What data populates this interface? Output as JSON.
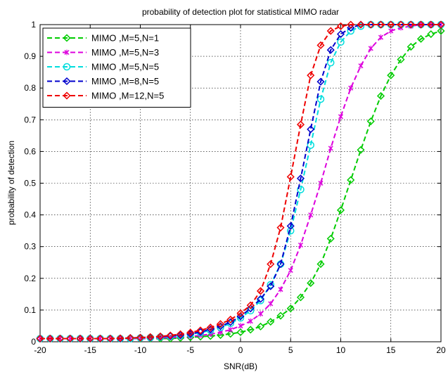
{
  "chart_data": {
    "type": "line",
    "title": "probability of detection plot for statistical MIMO radar",
    "xlabel": "SNR(dB)",
    "ylabel": "probability of detection",
    "xlim": [
      -20,
      20
    ],
    "ylim": [
      0,
      1
    ],
    "x_ticks": [
      "-20",
      "-15",
      "-10",
      "-5",
      "0",
      "5",
      "10",
      "15",
      "20"
    ],
    "y_ticks": [
      "0",
      "0.1",
      "0.2",
      "0.3",
      "0.4",
      "0.5",
      "0.6",
      "0.7",
      "0.8",
      "0.9",
      "1"
    ],
    "grid": true,
    "legend_position": "top-left",
    "x": [
      -20,
      -19,
      -18,
      -17,
      -16,
      -15,
      -14,
      -13,
      -12,
      -11,
      -10,
      -9,
      -8,
      -7,
      -6,
      -5,
      -4,
      -3,
      -2,
      -1,
      0,
      1,
      2,
      3,
      4,
      5,
      6,
      7,
      8,
      9,
      10,
      11,
      12,
      13,
      14,
      15,
      16,
      17,
      18,
      19,
      20
    ],
    "series": [
      {
        "name": "MIMO ,M=5,N=1",
        "color": "#00cc00",
        "marker": "diamond",
        "values": [
          0.01,
          0.01,
          0.01,
          0.01,
          0.01,
          0.01,
          0.01,
          0.01,
          0.01,
          0.01,
          0.01,
          0.01,
          0.01,
          0.01,
          0.012,
          0.014,
          0.016,
          0.018,
          0.021,
          0.025,
          0.03,
          0.038,
          0.048,
          0.063,
          0.082,
          0.105,
          0.14,
          0.185,
          0.245,
          0.325,
          0.415,
          0.51,
          0.605,
          0.695,
          0.775,
          0.84,
          0.89,
          0.93,
          0.955,
          0.97,
          0.98
        ]
      },
      {
        "name": "MIMO ,M=5,N=3",
        "color": "#dd00dd",
        "marker": "x",
        "values": [
          0.01,
          0.01,
          0.01,
          0.01,
          0.01,
          0.01,
          0.01,
          0.01,
          0.01,
          0.01,
          0.01,
          0.01,
          0.012,
          0.013,
          0.015,
          0.017,
          0.02,
          0.024,
          0.03,
          0.038,
          0.05,
          0.065,
          0.088,
          0.12,
          0.165,
          0.225,
          0.305,
          0.4,
          0.5,
          0.61,
          0.71,
          0.8,
          0.87,
          0.925,
          0.96,
          0.98,
          0.99,
          0.995,
          1.0,
          1.0,
          1.0
        ]
      },
      {
        "name": "MIMO ,M=5,N=5",
        "color": "#00dddd",
        "marker": "circle",
        "values": [
          0.01,
          0.01,
          0.01,
          0.01,
          0.01,
          0.01,
          0.01,
          0.01,
          0.01,
          0.01,
          0.012,
          0.013,
          0.015,
          0.017,
          0.02,
          0.024,
          0.029,
          0.036,
          0.045,
          0.058,
          0.075,
          0.098,
          0.13,
          0.18,
          0.245,
          0.35,
          0.48,
          0.62,
          0.765,
          0.88,
          0.945,
          0.98,
          0.995,
          1.0,
          1.0,
          1.0,
          1.0,
          1.0,
          1.0,
          1.0,
          1.0
        ]
      },
      {
        "name": "MIMO ,M=8,N=5",
        "color": "#0000cc",
        "marker": "diamond",
        "values": [
          0.01,
          0.01,
          0.01,
          0.01,
          0.01,
          0.01,
          0.01,
          0.01,
          0.01,
          0.012,
          0.013,
          0.014,
          0.016,
          0.018,
          0.021,
          0.025,
          0.031,
          0.039,
          0.049,
          0.062,
          0.08,
          0.105,
          0.135,
          0.175,
          0.245,
          0.365,
          0.515,
          0.67,
          0.82,
          0.92,
          0.97,
          0.99,
          1.0,
          1.0,
          1.0,
          1.0,
          1.0,
          1.0,
          1.0,
          1.0,
          1.0
        ]
      },
      {
        "name": "MIMO ,M=12,N=5",
        "color": "#ee0000",
        "marker": "diamond",
        "values": [
          0.01,
          0.01,
          0.01,
          0.01,
          0.01,
          0.01,
          0.01,
          0.01,
          0.011,
          0.012,
          0.013,
          0.015,
          0.017,
          0.02,
          0.024,
          0.029,
          0.036,
          0.045,
          0.056,
          0.07,
          0.09,
          0.115,
          0.16,
          0.245,
          0.36,
          0.52,
          0.685,
          0.84,
          0.935,
          0.98,
          0.995,
          1.0,
          1.0,
          1.0,
          1.0,
          1.0,
          1.0,
          1.0,
          1.0,
          1.0,
          1.0
        ]
      }
    ]
  }
}
